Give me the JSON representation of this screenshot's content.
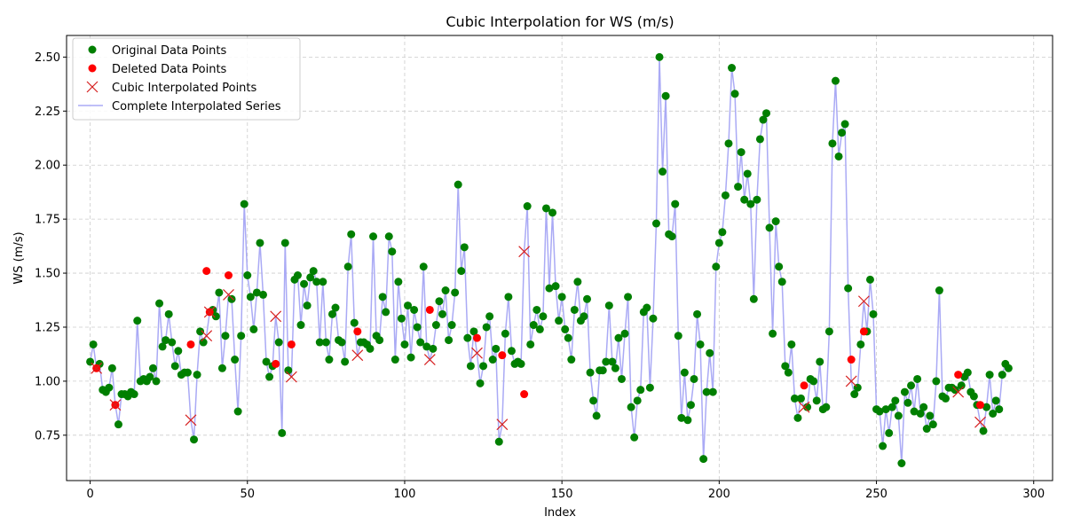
{
  "chart_data": {
    "type": "line",
    "title": "Cubic Interpolation for WS (m/s)",
    "xlabel": "Index",
    "ylabel": "WS (m/s)",
    "xlim": [
      -7.5,
      306
    ],
    "ylim": [
      0.54,
      2.6
    ],
    "xticks": [
      0,
      50,
      100,
      150,
      200,
      250,
      300
    ],
    "yticks": [
      0.75,
      1.0,
      1.25,
      1.5,
      1.75,
      2.0,
      2.25,
      2.5
    ],
    "ytick_labels": [
      "0.75",
      "1.00",
      "1.25",
      "1.50",
      "1.75",
      "2.00",
      "2.25",
      "2.50"
    ],
    "grid": true,
    "legend_position": "top-left",
    "series": [
      {
        "name": "Original Data Points",
        "style": "green-dot"
      },
      {
        "name": "Deleted Data Points",
        "style": "red-dot"
      },
      {
        "name": "Cubic Interpolated Points",
        "style": "red-x"
      },
      {
        "name": "Complete Interpolated Series",
        "style": "blue-line"
      }
    ],
    "colors": {
      "original": "#007f00",
      "deleted": "#ff0000",
      "interpolated": "#d62020",
      "line": "#aaaaf5"
    },
    "complete_series": [
      1.09,
      1.17,
      1.06,
      1.08,
      0.96,
      0.95,
      0.97,
      1.06,
      0.89,
      0.8,
      0.94,
      0.94,
      0.93,
      0.95,
      0.94,
      1.28,
      1.0,
      1.01,
      1.0,
      1.02,
      1.06,
      1.0,
      1.36,
      1.16,
      1.19,
      1.31,
      1.18,
      1.07,
      1.14,
      1.03,
      1.04,
      1.04,
      0.82,
      0.73,
      1.03,
      1.23,
      1.18,
      1.21,
      1.32,
      1.33,
      1.3,
      1.41,
      1.06,
      1.21,
      1.4,
      1.38,
      1.1,
      0.86,
      1.21,
      1.82,
      1.49,
      1.39,
      1.24,
      1.41,
      1.64,
      1.4,
      1.09,
      1.02,
      1.07,
      1.3,
      1.18,
      0.76,
      1.64,
      1.05,
      1.02,
      1.47,
      1.49,
      1.26,
      1.45,
      1.35,
      1.48,
      1.51,
      1.46,
      1.18,
      1.46,
      1.18,
      1.1,
      1.31,
      1.34,
      1.19,
      1.18,
      1.09,
      1.53,
      1.68,
      1.27,
      1.12,
      1.18,
      1.18,
      1.17,
      1.15,
      1.67,
      1.21,
      1.19,
      1.39,
      1.32,
      1.67,
      1.6,
      1.1,
      1.46,
      1.29,
      1.17,
      1.35,
      1.11,
      1.33,
      1.25,
      1.18,
      1.53,
      1.16,
      1.1,
      1.15,
      1.26,
      1.37,
      1.31,
      1.42,
      1.19,
      1.26,
      1.41,
      1.91,
      1.51,
      1.62,
      1.2,
      1.07,
      1.23,
      1.13,
      0.99,
      1.07,
      1.25,
      1.3,
      1.1,
      1.15,
      0.72,
      0.8,
      1.22,
      1.39,
      1.14,
      1.08,
      1.09,
      1.08,
      1.6,
      1.81,
      1.17,
      1.26,
      1.33,
      1.24,
      1.3,
      1.8,
      1.43,
      1.78,
      1.44,
      1.28,
      1.39,
      1.24,
      1.2,
      1.1,
      1.33,
      1.46,
      1.28,
      1.3,
      1.38,
      1.04,
      0.91,
      0.84,
      1.05,
      1.05,
      1.09,
      1.35,
      1.09,
      1.06,
      1.2,
      1.01,
      1.22,
      1.39,
      0.88,
      0.74,
      0.91,
      0.96,
      1.32,
      1.34,
      0.97,
      1.29,
      1.73,
      2.5,
      1.97,
      2.32,
      1.68,
      1.67,
      1.82,
      1.21,
      0.83,
      1.04,
      0.82,
      0.89,
      1.01,
      1.31,
      1.17,
      0.64,
      0.95,
      1.13,
      0.95,
      1.53,
      1.64,
      1.69,
      1.86,
      2.1,
      2.45,
      2.33,
      1.9,
      2.06,
      1.84,
      1.96,
      1.82,
      1.38,
      1.84,
      2.12,
      2.21,
      2.24,
      1.71,
      1.22,
      1.74,
      1.53,
      1.46,
      1.07,
      1.04,
      1.17,
      0.92,
      0.83,
      0.92,
      0.88,
      0.88,
      1.01,
      1.0,
      0.91,
      1.09,
      0.87,
      0.88,
      1.23,
      2.1,
      2.39,
      2.04,
      2.15,
      2.19,
      1.43,
      1.0,
      0.94,
      0.97,
      1.17,
      1.37,
      1.23,
      1.47,
      1.31,
      0.87,
      0.86,
      0.7,
      0.87,
      0.76,
      0.88,
      0.91,
      0.84,
      0.62,
      0.95,
      0.9,
      0.98,
      0.86,
      1.01,
      0.85,
      0.88,
      0.78,
      0.84,
      0.8,
      1.0,
      1.42,
      0.93,
      0.92,
      0.97,
      0.97,
      0.96,
      0.95,
      0.98,
      1.02,
      1.04,
      0.95,
      0.93,
      0.89,
      0.81,
      0.77,
      0.88,
      1.03,
      0.85,
      0.91,
      0.87,
      1.03,
      1.08,
      1.06
    ],
    "deleted_points": [
      {
        "x": 2,
        "y": 1.06
      },
      {
        "x": 8,
        "y": 0.89
      },
      {
        "x": 32,
        "y": 1.17
      },
      {
        "x": 37,
        "y": 1.51
      },
      {
        "x": 38,
        "y": 1.32
      },
      {
        "x": 44,
        "y": 1.49
      },
      {
        "x": 59,
        "y": 1.08
      },
      {
        "x": 64,
        "y": 1.17
      },
      {
        "x": 85,
        "y": 1.23
      },
      {
        "x": 108,
        "y": 1.33
      },
      {
        "x": 123,
        "y": 1.2
      },
      {
        "x": 131,
        "y": 1.12
      },
      {
        "x": 138,
        "y": 0.94
      },
      {
        "x": 227,
        "y": 0.98
      },
      {
        "x": 242,
        "y": 1.1
      },
      {
        "x": 246,
        "y": 1.23
      },
      {
        "x": 276,
        "y": 1.03
      },
      {
        "x": 283,
        "y": 0.89
      }
    ],
    "interpolated_indices": [
      2,
      8,
      32,
      37,
      38,
      44,
      59,
      64,
      85,
      108,
      123,
      131,
      138,
      227,
      242,
      246,
      276,
      283
    ]
  }
}
